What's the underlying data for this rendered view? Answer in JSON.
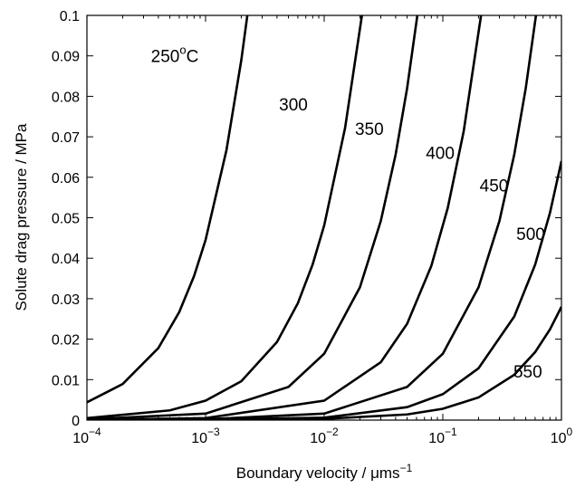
{
  "chart_data": {
    "type": "line",
    "xlabel": "Boundary velocity / μms",
    "xlabel_sup": "−1",
    "ylabel": "Solute drag pressure / MPa",
    "xscale": "log",
    "xlim": [
      0.0001,
      1
    ],
    "ylim": [
      0,
      0.1
    ],
    "grid": false,
    "legend": "none",
    "x_ticks": [
      {
        "value": 0.0001,
        "base": "10",
        "exp": "−4"
      },
      {
        "value": 0.001,
        "base": "10",
        "exp": "−3"
      },
      {
        "value": 0.01,
        "base": "10",
        "exp": "−2"
      },
      {
        "value": 0.1,
        "base": "10",
        "exp": "−1"
      },
      {
        "value": 1,
        "base": "10",
        "exp": "0"
      }
    ],
    "y_ticks": [
      {
        "value": 0,
        "label": "0"
      },
      {
        "value": 0.01,
        "label": "0.01"
      },
      {
        "value": 0.02,
        "label": "0.02"
      },
      {
        "value": 0.03,
        "label": "0.03"
      },
      {
        "value": 0.04,
        "label": "0.04"
      },
      {
        "value": 0.05,
        "label": "0.05"
      },
      {
        "value": 0.06,
        "label": "0.06"
      },
      {
        "value": 0.07,
        "label": "0.07"
      },
      {
        "value": 0.08,
        "label": "0.08"
      },
      {
        "value": 0.09,
        "label": "0.09"
      },
      {
        "value": 0.1,
        "label": "0.1"
      }
    ],
    "series": [
      {
        "label_text": "250",
        "label_sup": "o",
        "label_suffix": "C",
        "label_at": [
          0.00055,
          0.0885
        ],
        "points": [
          [
            0.0001,
            0.0044
          ],
          [
            0.0002,
            0.0089
          ],
          [
            0.0004,
            0.0178
          ],
          [
            0.0006,
            0.0267
          ],
          [
            0.0008,
            0.0356
          ],
          [
            0.001,
            0.0445
          ],
          [
            0.0015,
            0.0667
          ],
          [
            0.002,
            0.0889
          ],
          [
            0.00225,
            0.1
          ]
        ]
      },
      {
        "label_text": "300",
        "label_at": [
          0.0055,
          0.0765
        ],
        "points": [
          [
            0.0001,
            0.0005
          ],
          [
            0.0005,
            0.0024
          ],
          [
            0.001,
            0.0048
          ],
          [
            0.002,
            0.0096
          ],
          [
            0.004,
            0.0193
          ],
          [
            0.006,
            0.0289
          ],
          [
            0.008,
            0.0385
          ],
          [
            0.01,
            0.0481
          ],
          [
            0.015,
            0.0722
          ],
          [
            0.0208,
            0.1
          ]
        ]
      },
      {
        "label_text": "350",
        "label_at": [
          0.024,
          0.0705
        ],
        "points": [
          [
            0.0001,
            0.0002
          ],
          [
            0.001,
            0.0016
          ],
          [
            0.005,
            0.0082
          ],
          [
            0.01,
            0.0164
          ],
          [
            0.02,
            0.0328
          ],
          [
            0.03,
            0.0492
          ],
          [
            0.04,
            0.0656
          ],
          [
            0.05,
            0.082
          ],
          [
            0.061,
            0.1
          ]
        ]
      },
      {
        "label_text": "400",
        "label_at": [
          0.095,
          0.0645
        ],
        "points": [
          [
            0.0001,
            5e-05
          ],
          [
            0.001,
            0.0005
          ],
          [
            0.01,
            0.0048
          ],
          [
            0.03,
            0.0143
          ],
          [
            0.05,
            0.0238
          ],
          [
            0.08,
            0.0381
          ],
          [
            0.11,
            0.0524
          ],
          [
            0.15,
            0.0714
          ],
          [
            0.21,
            0.1
          ]
        ]
      },
      {
        "label_text": "450",
        "label_at": [
          0.27,
          0.0565
        ],
        "points": [
          [
            0.0001,
            2e-05
          ],
          [
            0.001,
            0.0002
          ],
          [
            0.01,
            0.0016
          ],
          [
            0.05,
            0.0082
          ],
          [
            0.1,
            0.0164
          ],
          [
            0.2,
            0.0328
          ],
          [
            0.3,
            0.0492
          ],
          [
            0.4,
            0.0656
          ],
          [
            0.5,
            0.082
          ],
          [
            0.61,
            0.1
          ]
        ]
      },
      {
        "label_text": "500",
        "label_at": [
          0.55,
          0.0445
        ],
        "points": [
          [
            0.0001,
            1e-05
          ],
          [
            0.001,
            0.0001
          ],
          [
            0.01,
            0.0006
          ],
          [
            0.05,
            0.0032
          ],
          [
            0.1,
            0.0064
          ],
          [
            0.2,
            0.0128
          ],
          [
            0.4,
            0.0256
          ],
          [
            0.6,
            0.0384
          ],
          [
            0.8,
            0.0512
          ],
          [
            1.0,
            0.064
          ]
        ]
      },
      {
        "label_text": "550",
        "label_at": [
          0.52,
          0.0105
        ],
        "points": [
          [
            0.0001,
            3e-06
          ],
          [
            0.001,
            3e-05
          ],
          [
            0.01,
            0.0003
          ],
          [
            0.05,
            0.0014
          ],
          [
            0.1,
            0.0028
          ],
          [
            0.2,
            0.0056
          ],
          [
            0.4,
            0.0112
          ],
          [
            0.6,
            0.0168
          ],
          [
            0.8,
            0.0224
          ],
          [
            1.0,
            0.028
          ]
        ]
      }
    ]
  }
}
